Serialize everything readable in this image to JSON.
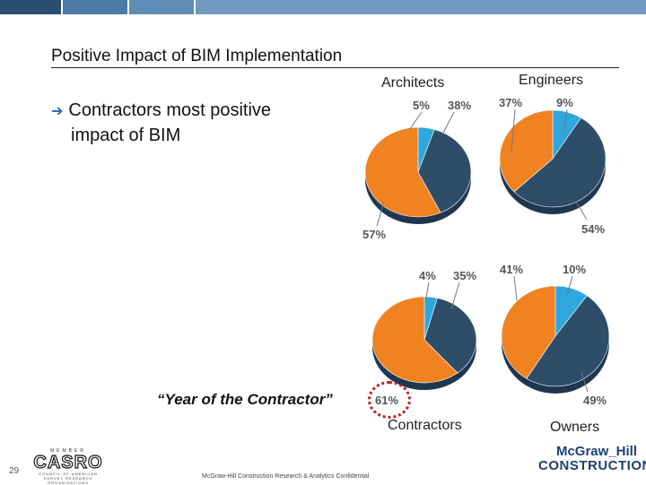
{
  "slide": {
    "title": "Positive Impact of BIM Implementation",
    "bullet_line1": "Contractors most positive",
    "bullet_line2": "impact of BIM",
    "callout": "“Year of the Contractor”",
    "page_number": "29",
    "footer_text": "McGraw-Hill Construction Research & Analytics Confidential"
  },
  "casro": {
    "member": "MEMBER",
    "name": "CASRO",
    "subtitle": "COUNCIL OF AMERICAN SURVEY RESEARCH ORGANIZATIONS"
  },
  "brand": {
    "line1": "McGraw_Hill",
    "line2": "CONSTRUCTION"
  },
  "colors": {
    "light_blue": "#2ea7de",
    "dark_blue": "#2e4d69",
    "orange": "#f08222",
    "topbar": [
      "#2a4e72",
      "#4b7aa5",
      "#5f8db5",
      "#6f99bf"
    ]
  },
  "chart_data": [
    {
      "type": "pie",
      "title": "Architects",
      "series_labels": [
        "Light blue",
        "Dark blue",
        "Orange"
      ],
      "values": [
        5,
        38,
        57
      ],
      "labels": [
        "5%",
        "38%",
        "57%"
      ]
    },
    {
      "type": "pie",
      "title": "Engineers",
      "series_labels": [
        "Light blue",
        "Dark blue",
        "Orange"
      ],
      "values": [
        9,
        54,
        37
      ],
      "labels": [
        "9%",
        "54%",
        "37%"
      ]
    },
    {
      "type": "pie",
      "title": "Contractors",
      "series_labels": [
        "Light blue",
        "Dark blue",
        "Orange"
      ],
      "values": [
        4,
        35,
        61
      ],
      "labels": [
        "4%",
        "35%",
        "61%"
      ]
    },
    {
      "type": "pie",
      "title": "Owners",
      "series_labels": [
        "Light blue",
        "Dark blue",
        "Orange"
      ],
      "values": [
        10,
        49,
        41
      ],
      "labels": [
        "10%",
        "49%",
        "41%"
      ]
    }
  ]
}
